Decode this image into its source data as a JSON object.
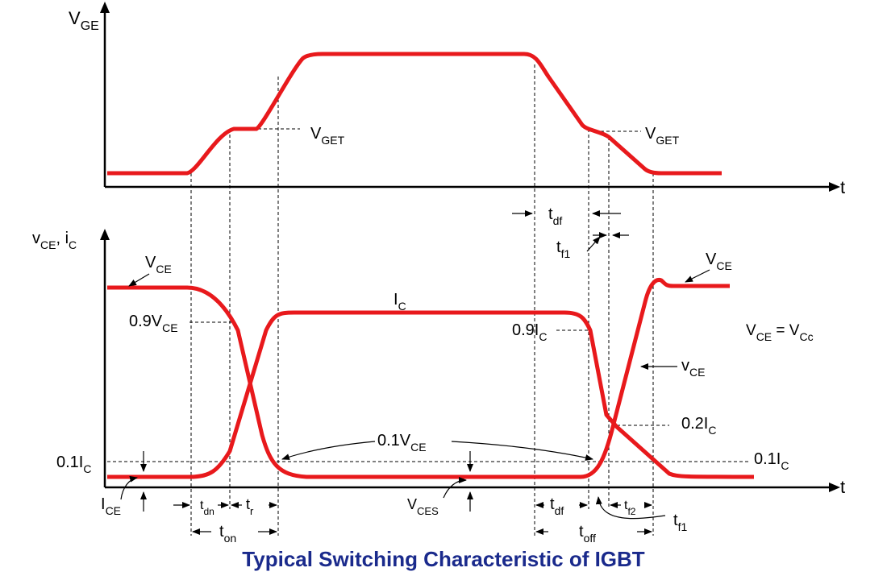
{
  "title": "Typical Switching Characteristic of IGBT",
  "labels": {
    "vge": [
      "V",
      "GE"
    ],
    "t_top": [
      "t"
    ],
    "vget_1": [
      "V",
      "GET"
    ],
    "vget_2": [
      "V",
      "GET"
    ],
    "vce_ic": [
      "v",
      "CE",
      ", i",
      "C"
    ],
    "t_bottom": [
      "t"
    ],
    "vce_1": [
      "V",
      "CE"
    ],
    "ic": [
      "I",
      "C"
    ],
    "vce_2": [
      "V",
      "CE"
    ],
    "vce_09": [
      "0.9V",
      "CE"
    ],
    "ic_09": [
      "0.9I",
      "C"
    ],
    "vce_eq": [
      "V",
      "CE",
      " = V",
      "Cc"
    ],
    "vce_small": [
      "v",
      "CE"
    ],
    "ic_02": [
      "0.2I",
      "C"
    ],
    "ic_01_left": [
      "0.1I",
      "C"
    ],
    "ic_01_right": [
      "0.1I",
      "C"
    ],
    "vce_01": [
      "0.1V",
      "CE"
    ],
    "ice": [
      "I",
      "CE"
    ],
    "vces": [
      "V",
      "CES"
    ],
    "tdf_top": [
      "t",
      "df"
    ],
    "tf1_top": [
      "t",
      "f1"
    ],
    "tdn": [
      "t",
      "dn"
    ],
    "tr": [
      "t",
      "r"
    ],
    "ton": [
      "t",
      "on"
    ],
    "tdf": [
      "t",
      "df"
    ],
    "toff": [
      "t",
      "off"
    ],
    "tf2": [
      "t",
      "f2"
    ],
    "tf1": [
      "t",
      "f1"
    ]
  }
}
